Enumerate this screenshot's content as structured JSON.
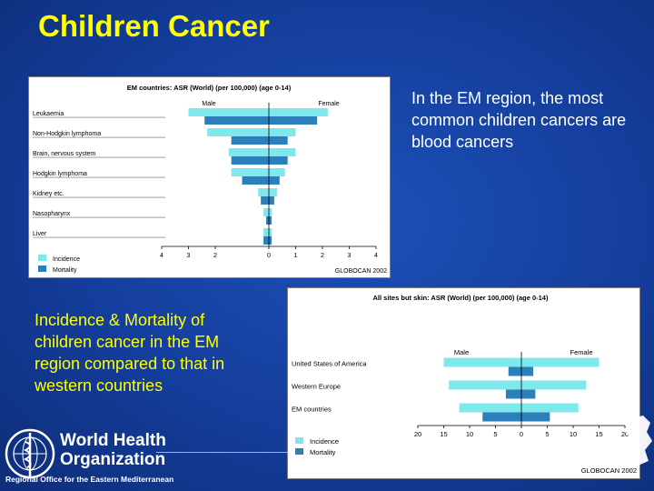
{
  "slide": {
    "title": "Children Cancer",
    "note_right": "In the EM region, the most common children cancers are blood cancers",
    "note_left": "Incidence & Mortality of children cancer in the EM region compared to that in western countries"
  },
  "logo": {
    "name_line1": "World Health",
    "name_line2": "Organization",
    "office": "Regional Office for the Eastern Mediterranean",
    "icon": "who-emblem-icon"
  },
  "colors": {
    "incidence": "#7fe8ec",
    "mortality": "#2c7fb8",
    "background": "#143e9c",
    "title": "#ffff00"
  },
  "chart_data": [
    {
      "type": "bar",
      "title": "EM countries: ASR (World) (per 100,000) (age 0-14)",
      "left_label": "Male",
      "right_label": "Female",
      "categories": [
        "Leukaemia",
        "Non-Hodgkin lymphoma",
        "Brain, nervous system",
        "Hodgkin lymphoma",
        "Kidney etc.",
        "Nasopharynx",
        "Liver"
      ],
      "series": [
        {
          "name": "Incidence",
          "male": [
            3.0,
            2.3,
            1.5,
            1.4,
            0.4,
            0.2,
            0.2
          ],
          "female": [
            2.2,
            1.0,
            1.0,
            0.6,
            0.3,
            0.1,
            0.1
          ]
        },
        {
          "name": "Mortality",
          "male": [
            2.4,
            1.4,
            1.4,
            1.0,
            0.3,
            0.1,
            0.2
          ],
          "female": [
            1.8,
            0.7,
            0.7,
            0.4,
            0.2,
            0.1,
            0.1
          ]
        }
      ],
      "ticks": [
        "4",
        "3",
        "2",
        "0",
        "1",
        "2",
        "3",
        "4"
      ],
      "tick_values": [
        -4,
        -3,
        -2,
        0,
        1,
        2,
        3,
        4
      ],
      "xlim": [
        -4,
        4
      ],
      "legend": [
        "Incidence",
        "Mortality"
      ],
      "source": "GLOBOCAN 2002"
    },
    {
      "type": "bar",
      "title": "All sites but skin: ASR (World) (per 100,000) (age 0-14)",
      "left_label": "Male",
      "right_label": "Female",
      "categories": [
        "United States of America",
        "Western Europe",
        "EM countries"
      ],
      "series": [
        {
          "name": "Incidence",
          "male": [
            15.0,
            14.0,
            12.0
          ],
          "female": [
            15.0,
            12.5,
            11.0
          ]
        },
        {
          "name": "Mortality",
          "male": [
            2.5,
            3.0,
            7.5
          ],
          "female": [
            2.3,
            2.7,
            5.5
          ]
        }
      ],
      "ticks": [
        "20",
        "15",
        "10",
        "5",
        "0",
        "5",
        "10",
        "15",
        "20"
      ],
      "tick_values": [
        -20,
        -15,
        -10,
        -5,
        0,
        5,
        10,
        15,
        20
      ],
      "xlim": [
        -20,
        20
      ],
      "legend": [
        "Incidence",
        "Mortality"
      ],
      "source": "GLOBOCAN 2002"
    }
  ]
}
